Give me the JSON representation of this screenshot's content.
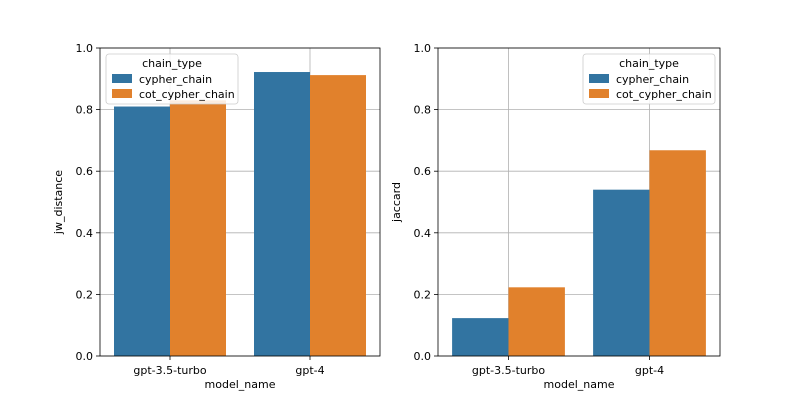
{
  "chart_data": [
    {
      "type": "bar",
      "categories": [
        "gpt-3.5-turbo",
        "gpt-4"
      ],
      "series": [
        {
          "name": "cypher_chain",
          "values": [
            0.81,
            0.922
          ],
          "color": "#3274a1"
        },
        {
          "name": "cot_cypher_chain",
          "values": [
            0.83,
            0.912
          ],
          "color": "#e1812c"
        }
      ],
      "xlabel": "model_name",
      "ylabel": "jw_distance",
      "ylim": [
        0,
        1.0
      ],
      "yticks": [
        "0.0",
        "0.2",
        "0.4",
        "0.6",
        "0.8",
        "1.0"
      ],
      "legend_title": "chain_type",
      "legend_position": "top-left",
      "grid": true
    },
    {
      "type": "bar",
      "categories": [
        "gpt-3.5-turbo",
        "gpt-4"
      ],
      "series": [
        {
          "name": "cypher_chain",
          "values": [
            0.123,
            0.54
          ],
          "color": "#3274a1"
        },
        {
          "name": "cot_cypher_chain",
          "values": [
            0.223,
            0.668
          ],
          "color": "#e1812c"
        }
      ],
      "xlabel": "model_name",
      "ylabel": "jaccard",
      "ylim": [
        0,
        1.0
      ],
      "yticks": [
        "0.0",
        "0.2",
        "0.4",
        "0.6",
        "0.8",
        "1.0"
      ],
      "legend_title": "chain_type",
      "legend_position": "top-right",
      "grid": true
    }
  ]
}
